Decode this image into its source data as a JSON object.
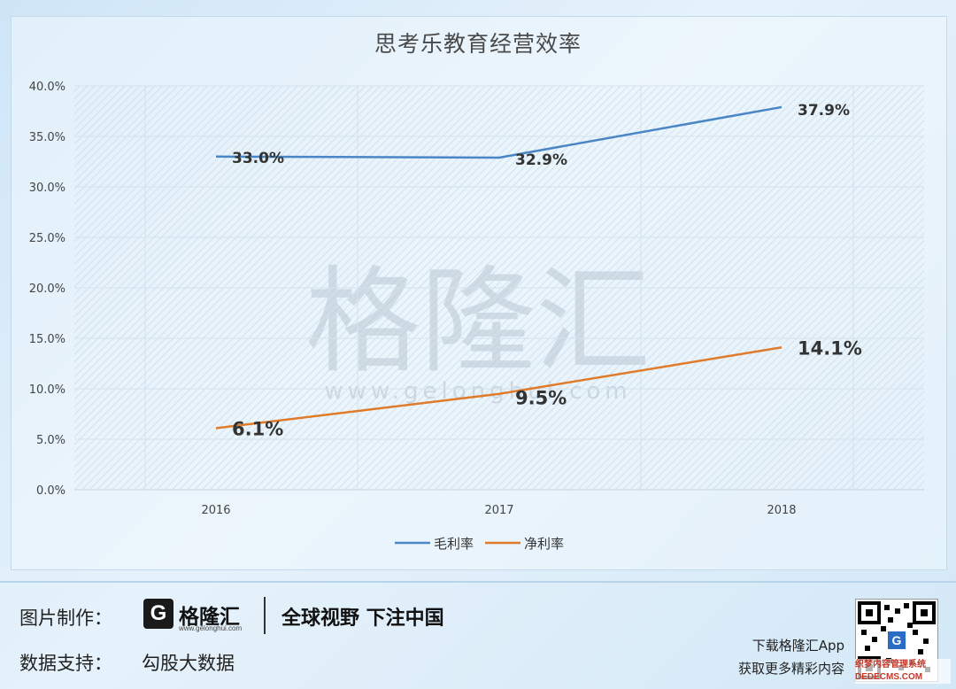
{
  "chart_data": {
    "type": "line",
    "title": "思考乐教育经营效率",
    "categories": [
      "2016",
      "2017",
      "2018"
    ],
    "series": [
      {
        "name": "毛利率",
        "values": [
          33.0,
          32.9,
          37.9
        ],
        "labels": [
          "33.0%",
          "32.9%",
          "37.9%"
        ],
        "color": "#4a86c5"
      },
      {
        "name": "净利率",
        "values": [
          6.1,
          9.5,
          14.1
        ],
        "labels": [
          "6.1%",
          "9.5%",
          "14.1%"
        ],
        "color": "#e07b2a"
      }
    ],
    "ylim": [
      0,
      40
    ],
    "yticks": [
      "0.0%",
      "5.0%",
      "10.0%",
      "15.0%",
      "20.0%",
      "25.0%",
      "30.0%",
      "35.0%",
      "40.0%"
    ],
    "grid": true,
    "legend_position": "bottom"
  },
  "watermark": {
    "text": "格隆汇",
    "url": "www.gelonghui.com"
  },
  "footer": {
    "credit_label": "图片制作：",
    "data_label": "数据支持：",
    "data_source": "勾股大数据",
    "brand_name": "格隆汇",
    "brand_g": "G",
    "brand_url": "www.gelonghui.com",
    "slogan": "全球视野 下注中国",
    "app_line1": "下载格隆汇App",
    "app_line2": "获取更多精彩内容",
    "qr_center": "G",
    "dede_line1": "织梦内容管理系统",
    "dede_line2": "DEDECMS.COM"
  }
}
